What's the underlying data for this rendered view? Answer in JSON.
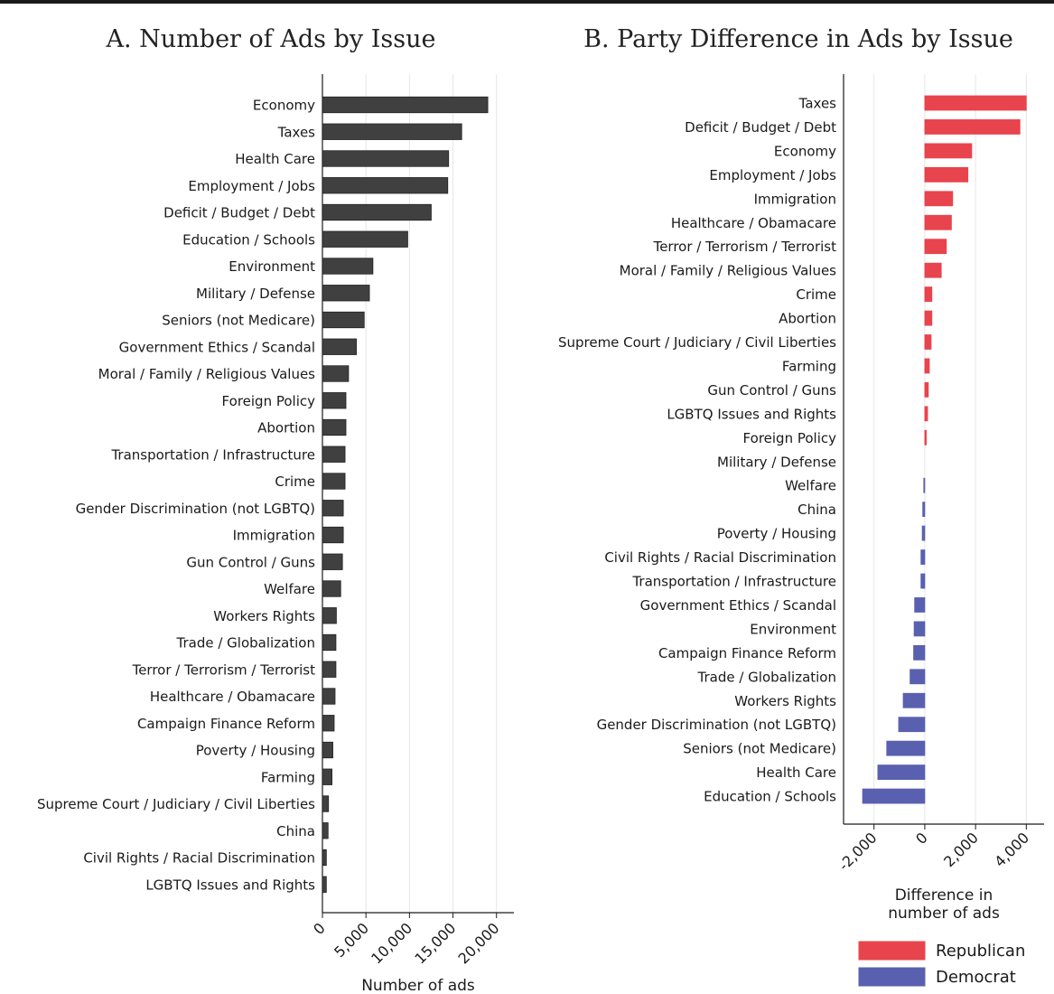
{
  "chart_data": [
    {
      "type": "bar",
      "orientation": "horizontal",
      "title": "A. Number of Ads by Issue",
      "xlabel": "Number of ads",
      "ylabel": "",
      "xlim": [
        0,
        22000
      ],
      "x_ticks": [
        0,
        5000,
        10000,
        15000,
        20000
      ],
      "x_tick_labels": [
        "0",
        "5,000",
        "10,000",
        "15,000",
        "20,000"
      ],
      "grid": "vertical",
      "bar_color": "#404040",
      "categories": [
        "Economy",
        "Taxes",
        "Health Care",
        "Employment / Jobs",
        "Deficit / Budget / Debt",
        "Education / Schools",
        "Environment",
        "Military / Defense",
        "Seniors (not Medicare)",
        "Government Ethics / Scandal",
        "Moral / Family / Religious Values",
        "Foreign Policy",
        "Abortion",
        "Transportation / Infrastructure",
        "Crime",
        "Gender Discrimination (not LGBTQ)",
        "Immigration",
        "Gun Control / Guns",
        "Welfare",
        "Workers Rights",
        "Trade / Globalization",
        "Terror / Terrorism / Terrorist",
        "Healthcare / Obamacare",
        "Campaign Finance Reform",
        "Poverty / Housing",
        "Farming",
        "Supreme Court / Judiciary / Civil Liberties",
        "China",
        "Civil Rights / Racial Discrimination",
        "LGBTQ Issues and Rights"
      ],
      "values": [
        19000,
        16000,
        14500,
        14400,
        12500,
        9800,
        5800,
        5400,
        4800,
        3900,
        3000,
        2700,
        2700,
        2600,
        2600,
        2400,
        2400,
        2300,
        2100,
        1600,
        1550,
        1550,
        1450,
        1350,
        1200,
        1100,
        700,
        650,
        450,
        450
      ]
    },
    {
      "type": "bar",
      "orientation": "horizontal",
      "title": "B. Party Difference in Ads by Issue",
      "xlabel": "Difference in number of ads",
      "ylabel": "",
      "xlim": [
        -3200,
        4700
      ],
      "x_ticks": [
        -2000,
        0,
        2000,
        4000
      ],
      "x_tick_labels": [
        "-2,000",
        "0",
        "2,000",
        "4,000"
      ],
      "grid": "vertical",
      "legend": {
        "position": "bottom-right",
        "entries": [
          {
            "name": "Republican",
            "color": "#e8444d"
          },
          {
            "name": "Democrat",
            "color": "#5a60b0"
          }
        ]
      },
      "categories": [
        "Taxes",
        "Deficit / Budget / Debt",
        "Economy",
        "Employment / Jobs",
        "Immigration",
        "Healthcare / Obamacare",
        "Terror / Terrorism / Terrorist",
        "Moral / Family / Religious Values",
        "Crime",
        "Abortion",
        "Supreme Court / Judiciary / Civil Liberties",
        "Farming",
        "Gun Control / Guns",
        "LGBTQ Issues and Rights",
        "Foreign Policy",
        "Military / Defense",
        "Welfare",
        "China",
        "Poverty / Housing",
        "Civil Rights / Racial Discrimination",
        "Transportation / Infrastructure",
        "Government Ethics / Scandal",
        "Environment",
        "Campaign Finance Reform",
        "Trade / Globalization",
        "Workers Rights",
        "Gender Discrimination (not LGBTQ)",
        "Seniors (not Medicare)",
        "Health Care",
        "Education / Schools"
      ],
      "values": [
        4000,
        3750,
        1850,
        1700,
        1100,
        1050,
        850,
        650,
        280,
        280,
        250,
        180,
        140,
        110,
        60,
        0,
        -40,
        -80,
        -100,
        -150,
        -150,
        -400,
        -420,
        -440,
        -580,
        -850,
        -1030,
        -1500,
        -1850,
        -2450
      ]
    }
  ]
}
